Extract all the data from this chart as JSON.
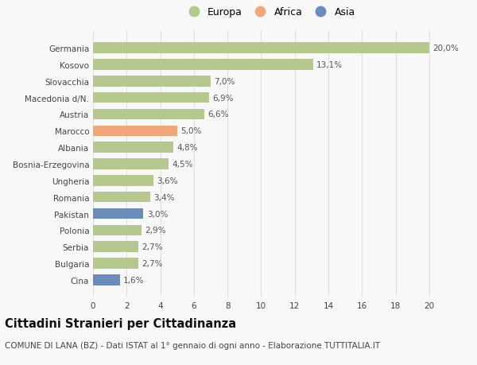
{
  "categories": [
    "Cina",
    "Bulgaria",
    "Serbia",
    "Polonia",
    "Pakistan",
    "Romania",
    "Ungheria",
    "Bosnia-Erzegovina",
    "Albania",
    "Marocco",
    "Austria",
    "Macedonia d/N.",
    "Slovacchia",
    "Kosovo",
    "Germania"
  ],
  "values": [
    1.6,
    2.7,
    2.7,
    2.9,
    3.0,
    3.4,
    3.6,
    4.5,
    4.8,
    5.0,
    6.6,
    6.9,
    7.0,
    13.1,
    20.0
  ],
  "labels": [
    "1,6%",
    "2,7%",
    "2,7%",
    "2,9%",
    "3,0%",
    "3,4%",
    "3,6%",
    "4,5%",
    "4,8%",
    "5,0%",
    "6,6%",
    "6,9%",
    "7,0%",
    "13,1%",
    "20,0%"
  ],
  "colors": [
    "#6b8cba",
    "#b5c98e",
    "#b5c98e",
    "#b5c98e",
    "#6b8cba",
    "#b5c98e",
    "#b5c98e",
    "#b5c98e",
    "#b5c98e",
    "#f0a878",
    "#b5c98e",
    "#b5c98e",
    "#b5c98e",
    "#b5c98e",
    "#b5c98e"
  ],
  "legend_labels": [
    "Europa",
    "Africa",
    "Asia"
  ],
  "legend_colors": [
    "#b5c98e",
    "#f0a878",
    "#6b8cba"
  ],
  "title": "Cittadini Stranieri per Cittadinanza",
  "subtitle": "COMUNE DI LANA (BZ) - Dati ISTAT al 1° gennaio di ogni anno - Elaborazione TUTTITALIA.IT",
  "xlim": [
    0,
    21
  ],
  "xticks": [
    0,
    2,
    4,
    6,
    8,
    10,
    12,
    14,
    16,
    18,
    20
  ],
  "bg_color": "#f8f8f8",
  "grid_color": "#e0e0e0",
  "label_fontsize": 7.5,
  "tick_fontsize": 7.5,
  "title_fontsize": 10.5,
  "subtitle_fontsize": 7.5
}
